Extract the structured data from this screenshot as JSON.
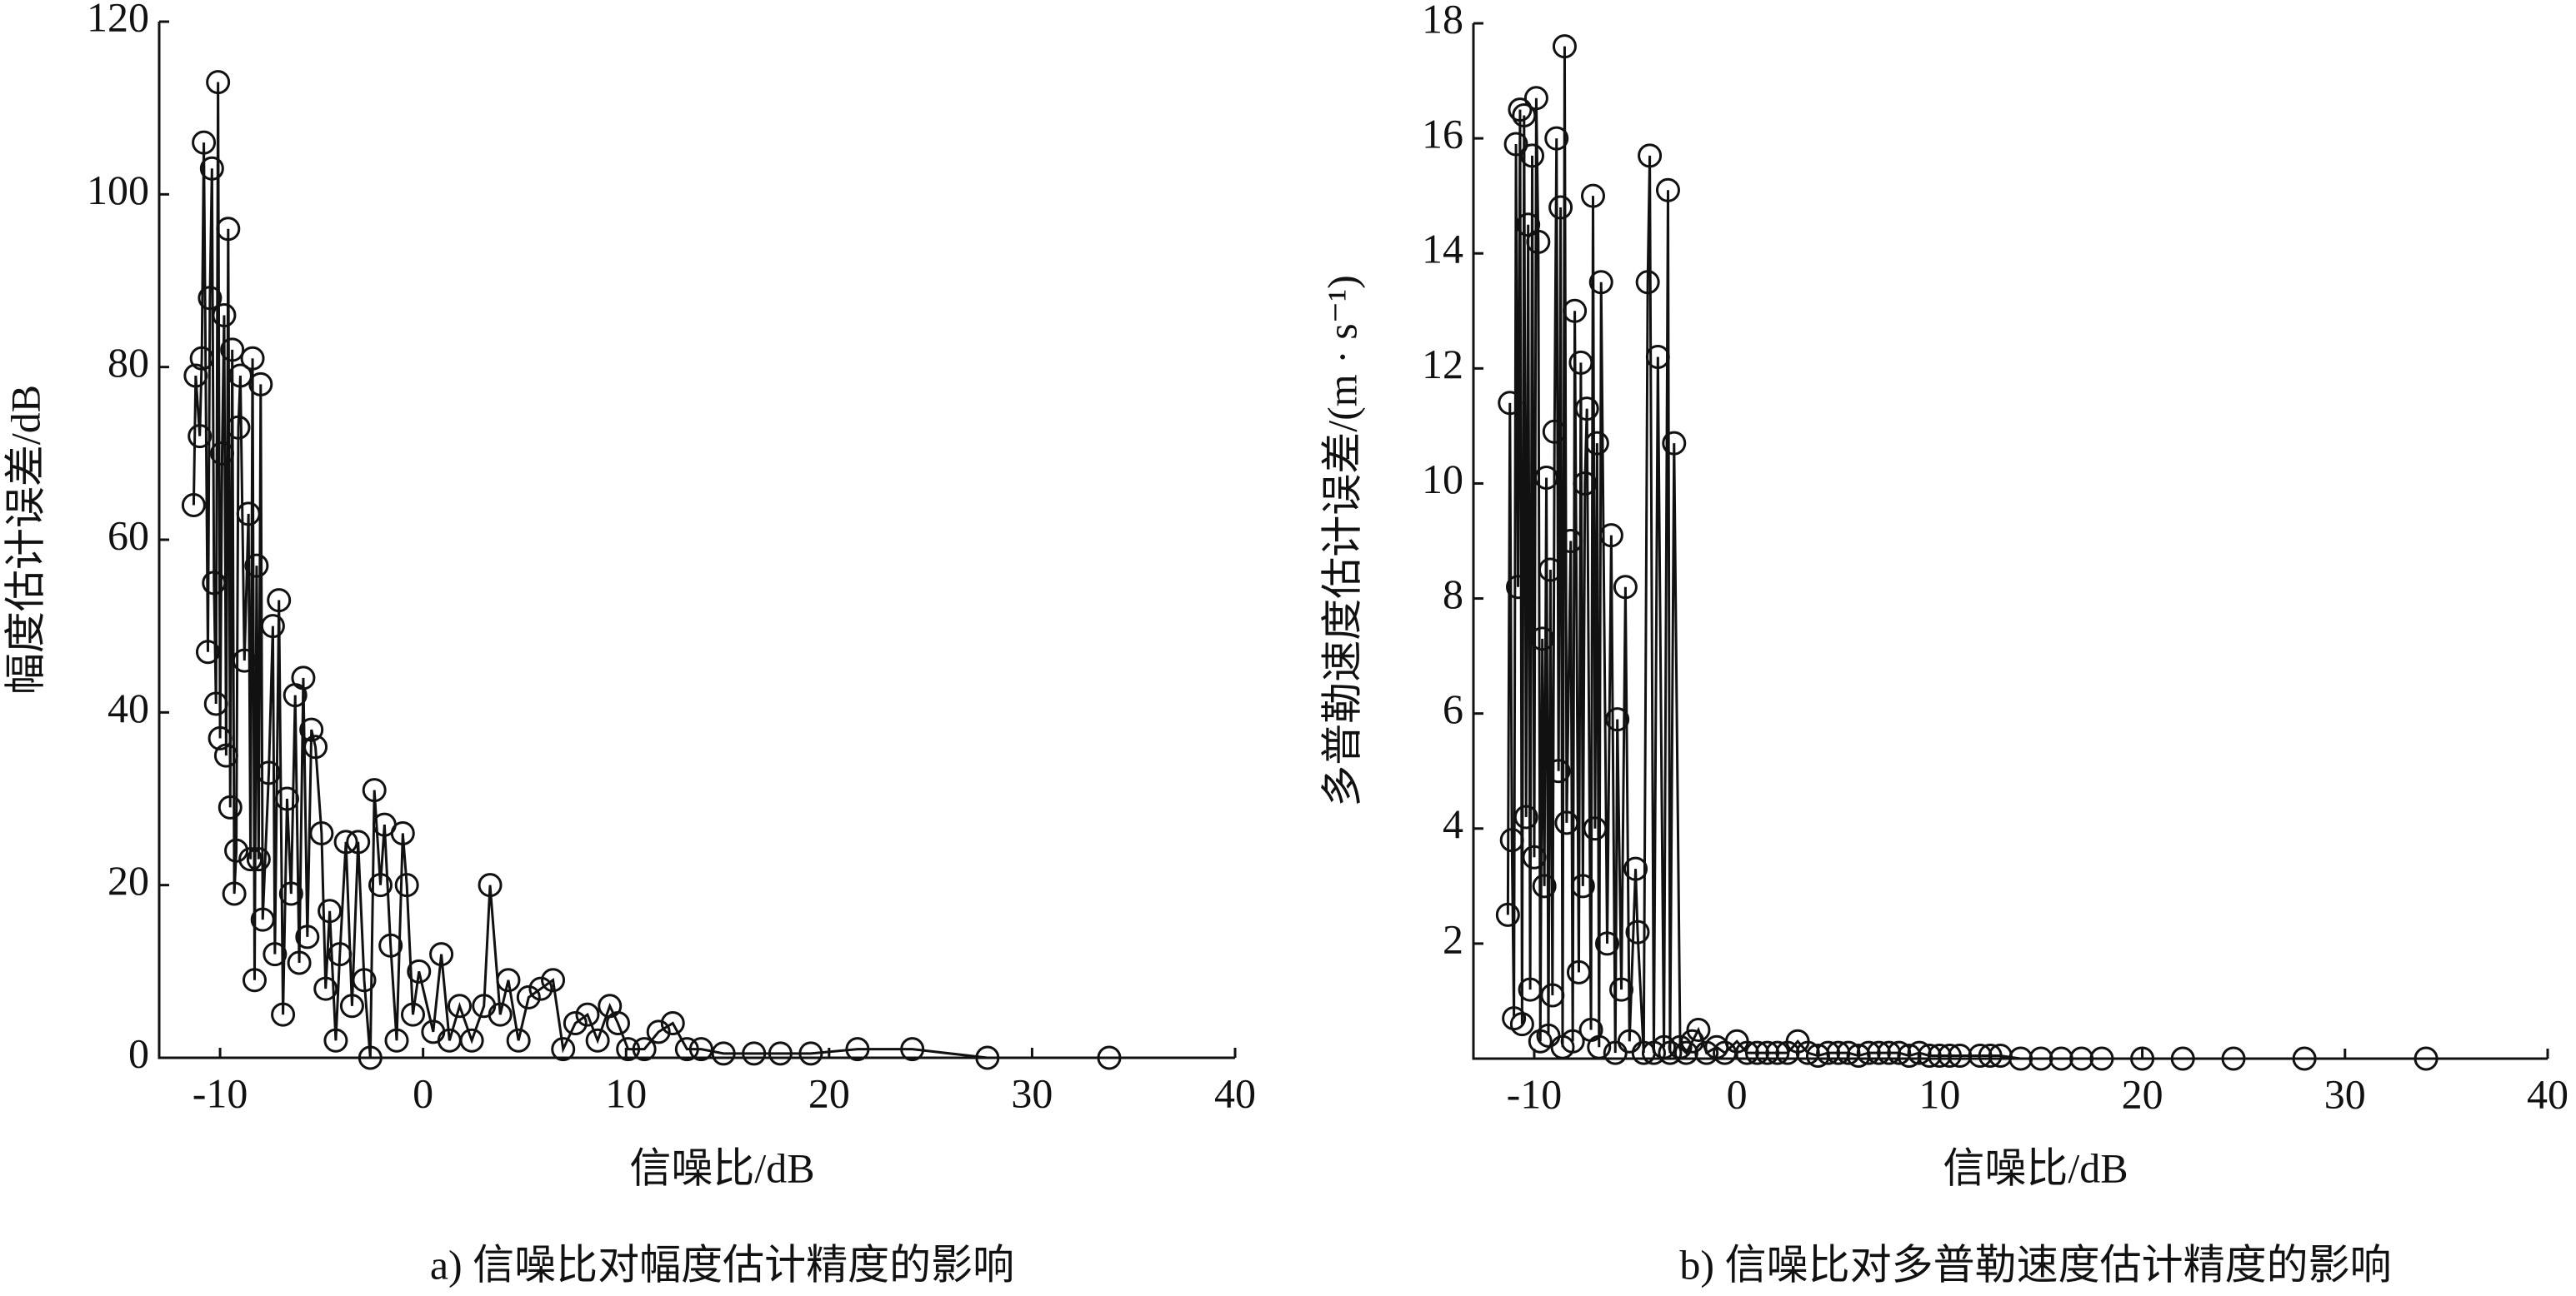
{
  "chart_data": [
    {
      "type": "line",
      "xlabel": "信噪比/dB",
      "ylabel": "幅度估计误差/dB",
      "caption": "a) 信噪比对幅度估计精度的影响",
      "xlim": [
        -13,
        40
      ],
      "xticks": [
        -10,
        0,
        10,
        20,
        30,
        40
      ],
      "ylim": [
        0,
        120
      ],
      "yticks": [
        0,
        20,
        40,
        60,
        80,
        100,
        120
      ],
      "x": [
        -11.3,
        -11.2,
        -11,
        -10.9,
        -10.8,
        -10.6,
        -10.5,
        -10.4,
        -10.3,
        -10.2,
        -10.1,
        -10,
        -9.9,
        -9.8,
        -9.7,
        -9.6,
        -9.5,
        -9.4,
        -9.3,
        -9.2,
        -9.1,
        -9,
        -8.8,
        -8.6,
        -8.5,
        -8.4,
        -8.3,
        -8.2,
        -8.1,
        -8,
        -7.9,
        -7.6,
        -7.4,
        -7.3,
        -7.1,
        -6.9,
        -6.7,
        -6.5,
        -6.3,
        -6.1,
        -5.9,
        -5.7,
        -5.5,
        -5.3,
        -5,
        -4.8,
        -4.6,
        -4.3,
        -4.1,
        -3.8,
        -3.5,
        -3.2,
        -2.9,
        -2.6,
        -2.4,
        -2.1,
        -1.9,
        -1.6,
        -1.3,
        -1,
        -0.8,
        -0.5,
        -0.2,
        0.5,
        0.9,
        1.3,
        1.8,
        2.4,
        3,
        3.3,
        3.8,
        4.2,
        4.7,
        5.2,
        5.8,
        6.4,
        6.9,
        7.5,
        8.1,
        8.6,
        9.2,
        9.6,
        10.1,
        10.9,
        11.6,
        12.3,
        13,
        13.7,
        14.8,
        16.3,
        17.6,
        19.1,
        21.4,
        24.1,
        27.8,
        33.8
      ],
      "series": [
        {
          "color": "#111111",
          "values": [
            64,
            79,
            72,
            81,
            106,
            47,
            88,
            103,
            55,
            41,
            113,
            37,
            70,
            86,
            35,
            96,
            29,
            82,
            19,
            24,
            73,
            79,
            46,
            63,
            23,
            81,
            9,
            57,
            23,
            78,
            16,
            33,
            50,
            12,
            53,
            5,
            30,
            19,
            42,
            11,
            44,
            14,
            38,
            36,
            26,
            8,
            17,
            2,
            12,
            25,
            6,
            25,
            9,
            0,
            31,
            20,
            27,
            13,
            2,
            26,
            20,
            5,
            10,
            3,
            12,
            2,
            6,
            2,
            6,
            20,
            5,
            9,
            2,
            7,
            8,
            9,
            1,
            4,
            5,
            2,
            6,
            4,
            1,
            1,
            3,
            4,
            1,
            1,
            0.5,
            0.5,
            0.5,
            0.5,
            1,
            1,
            0,
            0
          ]
        }
      ]
    },
    {
      "type": "line",
      "xlabel": "信噪比/dB",
      "ylabel": "多普勒速度估计误差/(m · s⁻¹)",
      "caption": "b) 信噪比对多普勒速度估计精度的影响",
      "xlim": [
        -13,
        40
      ],
      "xticks": [
        0,
        10,
        20,
        30,
        40,
        -10
      ],
      "ylim": [
        0,
        18
      ],
      "yticks": [
        2,
        4,
        6,
        8,
        10,
        12,
        14,
        16,
        18
      ],
      "x": [
        -11.3,
        -11.2,
        -11.1,
        -11,
        -10.9,
        -10.8,
        -10.7,
        -10.6,
        -10.5,
        -10.4,
        -10.3,
        -10.2,
        -10.1,
        -10,
        -9.9,
        -9.8,
        -9.7,
        -9.6,
        -9.5,
        -9.4,
        -9.3,
        -9.2,
        -9.1,
        -9,
        -8.9,
        -8.8,
        -8.7,
        -8.6,
        -8.5,
        -8.4,
        -8.2,
        -8.1,
        -8,
        -7.8,
        -7.7,
        -7.6,
        -7.5,
        -7.4,
        -7.2,
        -7.1,
        -7,
        -6.9,
        -6.8,
        -6.7,
        -6.4,
        -6.2,
        -6,
        -5.9,
        -5.7,
        -5.5,
        -5.3,
        -5,
        -4.9,
        -4.6,
        -4.4,
        -4.3,
        -4.1,
        -3.9,
        -3.6,
        -3.4,
        -3.3,
        -3.1,
        -2.8,
        -2.5,
        -2.2,
        -1.9,
        -1.5,
        -1,
        -0.6,
        0,
        0.5,
        1,
        1.5,
        2,
        2.5,
        3,
        3.5,
        4,
        4.5,
        5,
        5.5,
        6,
        6.5,
        7,
        7.5,
        8,
        8.5,
        9,
        9.5,
        10,
        10.5,
        11,
        12,
        12.5,
        13,
        14,
        15,
        16,
        17,
        18,
        20,
        22,
        24.5,
        28,
        34
      ],
      "series": [
        {
          "color": "#111111",
          "values": [
            2.5,
            11.4,
            3.8,
            0.7,
            15.9,
            8.2,
            16.5,
            0.6,
            16.4,
            4.2,
            14.5,
            1.2,
            15.7,
            3.5,
            16.7,
            14.2,
            0.3,
            7.3,
            3,
            10.1,
            0.4,
            8.5,
            1.1,
            10.9,
            16,
            5,
            14.8,
            0.2,
            17.6,
            4.1,
            9,
            0.3,
            13,
            1.5,
            12.1,
            3,
            10,
            11.3,
            0.5,
            15,
            4,
            10.7,
            0.2,
            13.5,
            2,
            9.1,
            0.1,
            5.9,
            1.2,
            8.2,
            0.3,
            3.3,
            2.2,
            0.1,
            13.5,
            15.7,
            0.1,
            12.2,
            0.2,
            15.1,
            0.1,
            10.7,
            0.2,
            0.1,
            0.3,
            0.5,
            0.1,
            0.2,
            0.1,
            0.3,
            0.1,
            0.1,
            0.1,
            0.1,
            0.1,
            0.3,
            0.1,
            0.05,
            0.1,
            0.1,
            0.1,
            0.05,
            0.1,
            0.1,
            0.1,
            0.1,
            0.05,
            0.1,
            0.05,
            0.05,
            0.05,
            0.05,
            0.05,
            0.05,
            0.05,
            0,
            0,
            0,
            0,
            0,
            0,
            0,
            0,
            0,
            0
          ]
        }
      ]
    }
  ]
}
